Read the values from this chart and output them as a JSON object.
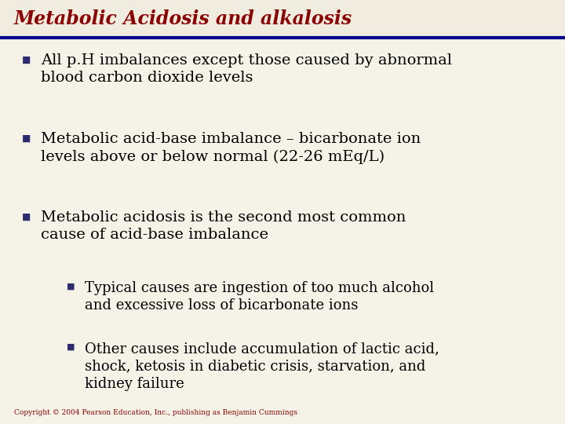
{
  "title": "Metabolic Acidosis and alkalosis",
  "title_color": "#8B0000",
  "title_bg": "#f0ede0",
  "underline_color": "#00008B",
  "bg_color": "#f5f2e8",
  "bullet_color": "#2b2b6e",
  "text_color": "#000000",
  "copyright": "Copyright © 2004 Pearson Education, Inc., publishing as Benjamin Cummings",
  "bullet_char": "■",
  "items": [
    {
      "level": 0,
      "text": "All p.H imbalances except those caused by abnormal\nblood carbon dioxide levels"
    },
    {
      "level": 0,
      "text": "Metabolic acid-base imbalance – bicarbonate ion\nlevels above or below normal (22-26 mEq/L)"
    },
    {
      "level": 0,
      "text": "Metabolic acidosis is the second most common\ncause of acid-base imbalance"
    },
    {
      "level": 1,
      "text": "Typical causes are ingestion of too much alcohol\nand excessive loss of bicarbonate ions"
    },
    {
      "level": 1,
      "text": "Other causes include accumulation of lactic acid,\nshock, ketosis in diabetic crisis, starvation, and\nkidney failure"
    }
  ],
  "title_fontsize": 17,
  "main_fontsize": 14,
  "sub_fontsize": 13,
  "copyright_fontsize": 6.5
}
